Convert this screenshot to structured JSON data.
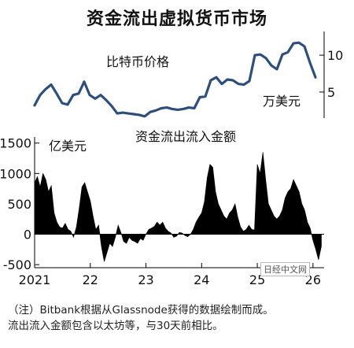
{
  "title": "资金流出虚拟货币市场",
  "watermark": "日经中文网",
  "note": {
    "line1": "（注）Bitbank根据从Glassnode获得的数据绘制而成。",
    "line2": "流出流入金额包含以太坊等，与30天前相比。"
  },
  "colors": {
    "price_line": "#2e4f7a",
    "flow_fill": "#000000",
    "axis": "#000000"
  },
  "chart_data": [
    {
      "type": "line",
      "title": "比特币价格",
      "unit_label": "万美元",
      "ylim": [
        2,
        13
      ],
      "y_ticks": [
        5,
        10
      ],
      "x_range": [
        2021.0,
        2026.2
      ],
      "series": [
        {
          "x": [
            2021.0,
            2021.1,
            2021.2,
            2021.3,
            2021.4,
            2021.5,
            2021.6,
            2021.7,
            2021.8,
            2021.9,
            2022.0,
            2022.1,
            2022.2,
            2022.3,
            2022.4,
            2022.5,
            2022.6,
            2022.7,
            2022.8,
            2022.9,
            2023.0,
            2023.1,
            2023.2,
            2023.3,
            2023.4,
            2023.5,
            2023.6,
            2023.7,
            2023.8,
            2023.9,
            2024.0,
            2024.1,
            2024.2,
            2024.3,
            2024.4,
            2024.5,
            2024.6,
            2024.7,
            2024.8,
            2024.9,
            2025.0,
            2025.1,
            2025.2,
            2025.3,
            2025.4,
            2025.5,
            2025.6,
            2025.7,
            2025.8,
            2025.9,
            2026.0,
            2026.1
          ],
          "values": [
            3.2,
            4.6,
            5.4,
            6.0,
            4.8,
            3.5,
            3.3,
            4.6,
            4.8,
            6.4,
            4.6,
            4.1,
            4.6,
            3.9,
            3.1,
            2.1,
            2.2,
            2.1,
            2.0,
            1.9,
            1.7,
            2.3,
            2.5,
            2.8,
            2.9,
            2.7,
            2.6,
            2.7,
            2.9,
            2.8,
            4.3,
            4.4,
            6.6,
            7.0,
            6.1,
            6.7,
            6.6,
            6.1,
            6.0,
            6.5,
            10.0,
            10.1,
            9.6,
            8.6,
            8.1,
            10.1,
            10.4,
            11.6,
            11.7,
            11.2,
            9.0,
            7.0
          ]
        }
      ]
    },
    {
      "type": "area",
      "title": "资金流出流入金额",
      "unit_label": "亿美元",
      "ylim": [
        -550,
        1600
      ],
      "y_ticks": [
        1500,
        1000,
        500,
        0,
        -500
      ],
      "x_ticks": [
        "2021",
        "22",
        "23",
        "24",
        "25",
        "26"
      ],
      "x_range": [
        2021.0,
        2026.2
      ],
      "series": [
        {
          "x": [
            2021.0,
            2021.05,
            2021.1,
            2021.15,
            2021.2,
            2021.25,
            2021.3,
            2021.35,
            2021.4,
            2021.45,
            2021.5,
            2021.55,
            2021.6,
            2021.65,
            2021.7,
            2021.75,
            2021.8,
            2021.85,
            2021.9,
            2021.95,
            2022.0,
            2022.05,
            2022.1,
            2022.15,
            2022.2,
            2022.25,
            2022.3,
            2022.35,
            2022.4,
            2022.45,
            2022.5,
            2022.55,
            2022.6,
            2022.65,
            2022.7,
            2022.75,
            2022.8,
            2022.85,
            2022.9,
            2022.95,
            2023.0,
            2023.05,
            2023.1,
            2023.15,
            2023.2,
            2023.25,
            2023.3,
            2023.35,
            2023.4,
            2023.45,
            2023.5,
            2023.55,
            2023.6,
            2023.65,
            2023.7,
            2023.75,
            2023.8,
            2023.85,
            2023.9,
            2023.95,
            2024.0,
            2024.05,
            2024.1,
            2024.15,
            2024.2,
            2024.25,
            2024.3,
            2024.35,
            2024.4,
            2024.45,
            2024.5,
            2024.55,
            2024.6,
            2024.65,
            2024.7,
            2024.75,
            2024.8,
            2024.85,
            2024.9,
            2024.95,
            2025.0,
            2025.05,
            2025.1,
            2025.15,
            2025.2,
            2025.25,
            2025.3,
            2025.35,
            2025.4,
            2025.45,
            2025.5,
            2025.55,
            2025.6,
            2025.65,
            2025.7,
            2025.75,
            2025.8,
            2025.85,
            2025.9,
            2025.95,
            2026.0,
            2026.05,
            2026.1,
            2026.15
          ],
          "values": [
            850,
            950,
            780,
            1000,
            900,
            700,
            800,
            350,
            200,
            120,
            100,
            180,
            80,
            50,
            -50,
            120,
            420,
            780,
            850,
            700,
            550,
            300,
            80,
            150,
            -200,
            -450,
            -300,
            -150,
            -200,
            -50,
            150,
            30,
            -120,
            -150,
            -50,
            -100,
            -120,
            -150,
            -70,
            -100,
            0,
            80,
            100,
            130,
            200,
            150,
            200,
            100,
            50,
            20,
            -50,
            -30,
            30,
            20,
            -20,
            -40,
            0,
            80,
            200,
            280,
            350,
            530,
            930,
            1150,
            1100,
            700,
            500,
            400,
            300,
            250,
            350,
            400,
            500,
            280,
            120,
            50,
            80,
            150,
            80,
            70,
            1150,
            1000,
            1350,
            900,
            500,
            400,
            300,
            250,
            300,
            400,
            600,
            700,
            750,
            900,
            800,
            700,
            500,
            400,
            200,
            100,
            -100,
            -250,
            -420,
            -200
          ]
        }
      ]
    }
  ]
}
